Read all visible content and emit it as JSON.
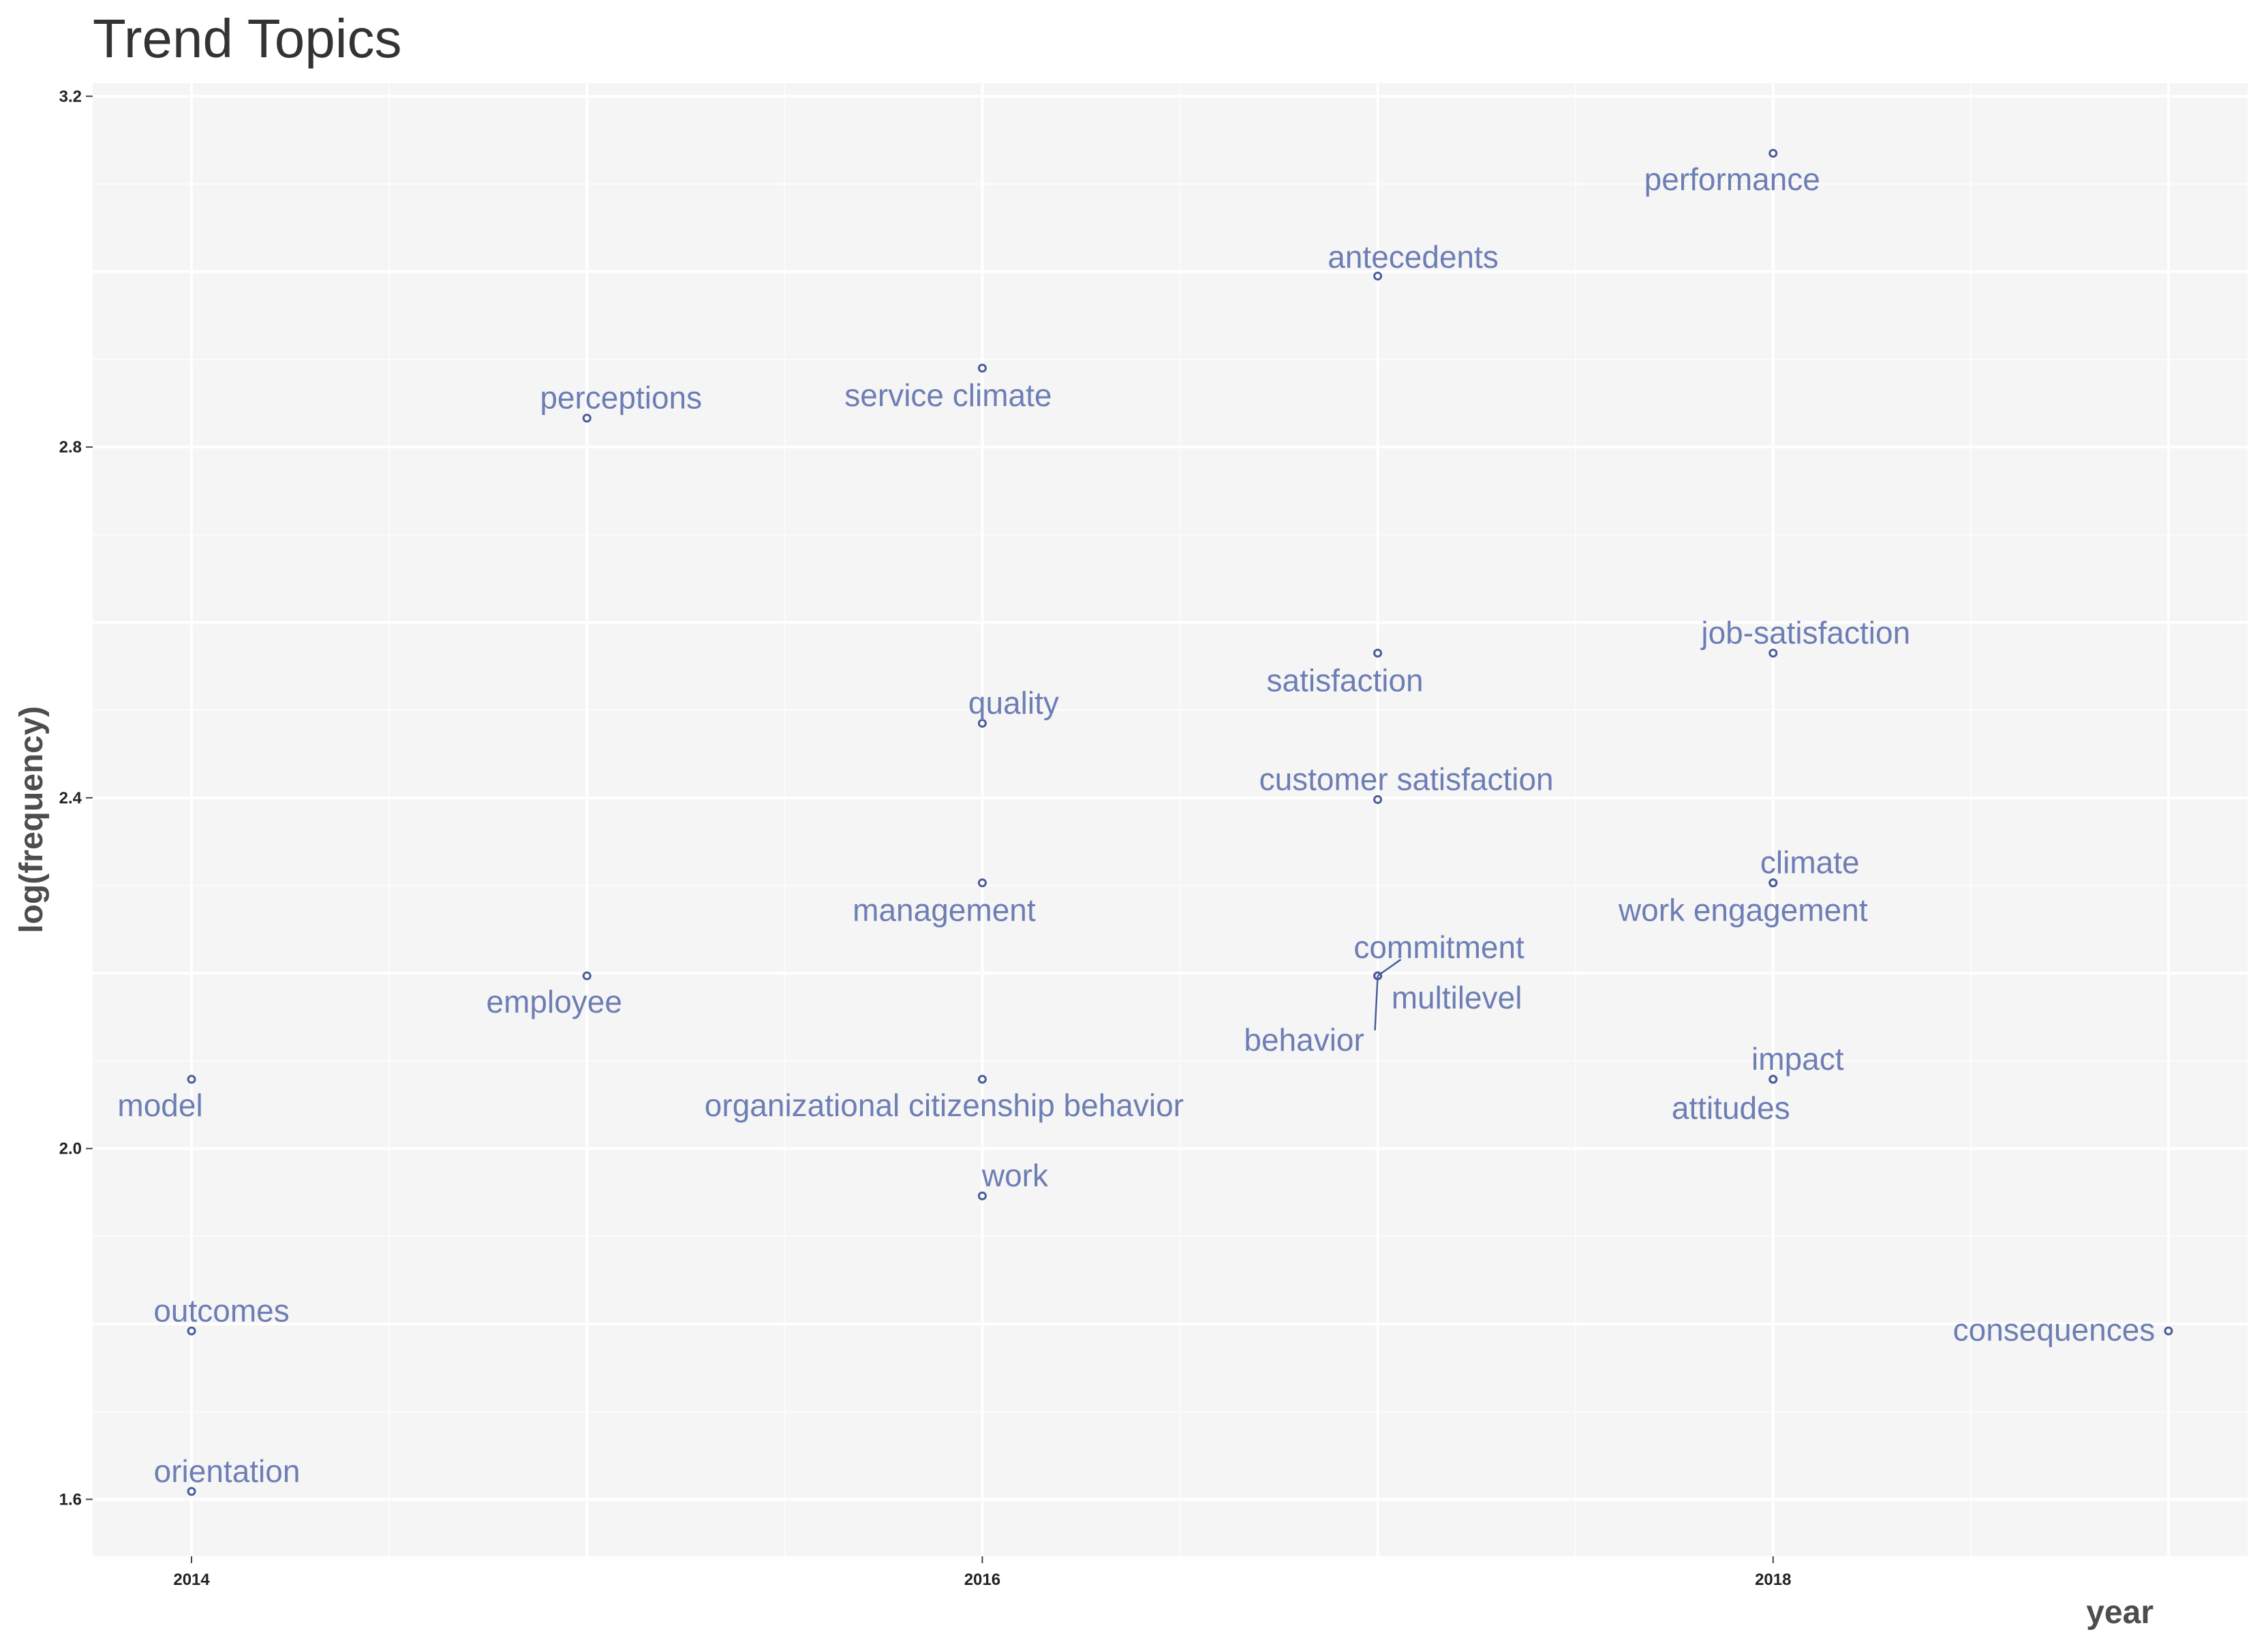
{
  "chart_data": {
    "type": "scatter",
    "title": "Trend Topics",
    "xlabel": "year",
    "ylabel": "log(frequency)",
    "xlim": [
      2013.75,
      2019.2
    ],
    "ylim": [
      1.535,
      3.215
    ],
    "x_ticks": [
      2014,
      2016,
      2018
    ],
    "y_ticks": [
      1.6,
      2.0,
      2.4,
      2.8,
      3.2
    ],
    "y_tick_labels": [
      "1.6",
      "2.0",
      "2.4",
      "2.8",
      "3.2"
    ],
    "grid": true,
    "legend": "none",
    "colors": {
      "panel": "#f5f5f5",
      "grid_major": "#ffffff",
      "point": "#4a5c9a",
      "label": "#6d7eb5"
    },
    "points": [
      {
        "term": "performance",
        "year": 2018,
        "value": 3.135
      },
      {
        "term": "antecedents",
        "year": 2017,
        "value": 2.995
      },
      {
        "term": "service climate",
        "year": 2016,
        "value": 2.89
      },
      {
        "term": "perceptions",
        "year": 2015,
        "value": 2.833
      },
      {
        "term": "job-satisfaction",
        "year": 2018,
        "value": 2.565
      },
      {
        "term": "satisfaction",
        "year": 2017,
        "value": 2.565
      },
      {
        "term": "quality",
        "year": 2016,
        "value": 2.485
      },
      {
        "term": "customer satisfaction",
        "year": 2017,
        "value": 2.398
      },
      {
        "term": "climate",
        "year": 2018,
        "value": 2.303
      },
      {
        "term": "work engagement",
        "year": 2018,
        "value": 2.303
      },
      {
        "term": "management",
        "year": 2016,
        "value": 2.303
      },
      {
        "term": "commitment",
        "year": 2017,
        "value": 2.197
      },
      {
        "term": "multilevel",
        "year": 2017,
        "value": 2.197
      },
      {
        "term": "behavior",
        "year": 2017,
        "value": 2.197
      },
      {
        "term": "employee",
        "year": 2015,
        "value": 2.197
      },
      {
        "term": "model",
        "year": 2014,
        "value": 2.079
      },
      {
        "term": "organizational citizenship behavior",
        "year": 2016,
        "value": 2.079
      },
      {
        "term": "impact",
        "year": 2018,
        "value": 2.079
      },
      {
        "term": "attitudes",
        "year": 2018,
        "value": 2.079
      },
      {
        "term": "work",
        "year": 2016,
        "value": 1.946
      },
      {
        "term": "outcomes",
        "year": 2014,
        "value": 1.792
      },
      {
        "term": "consequences",
        "year": 2019,
        "value": 1.792
      },
      {
        "term": "orientation",
        "year": 2014,
        "value": 1.609
      }
    ]
  }
}
